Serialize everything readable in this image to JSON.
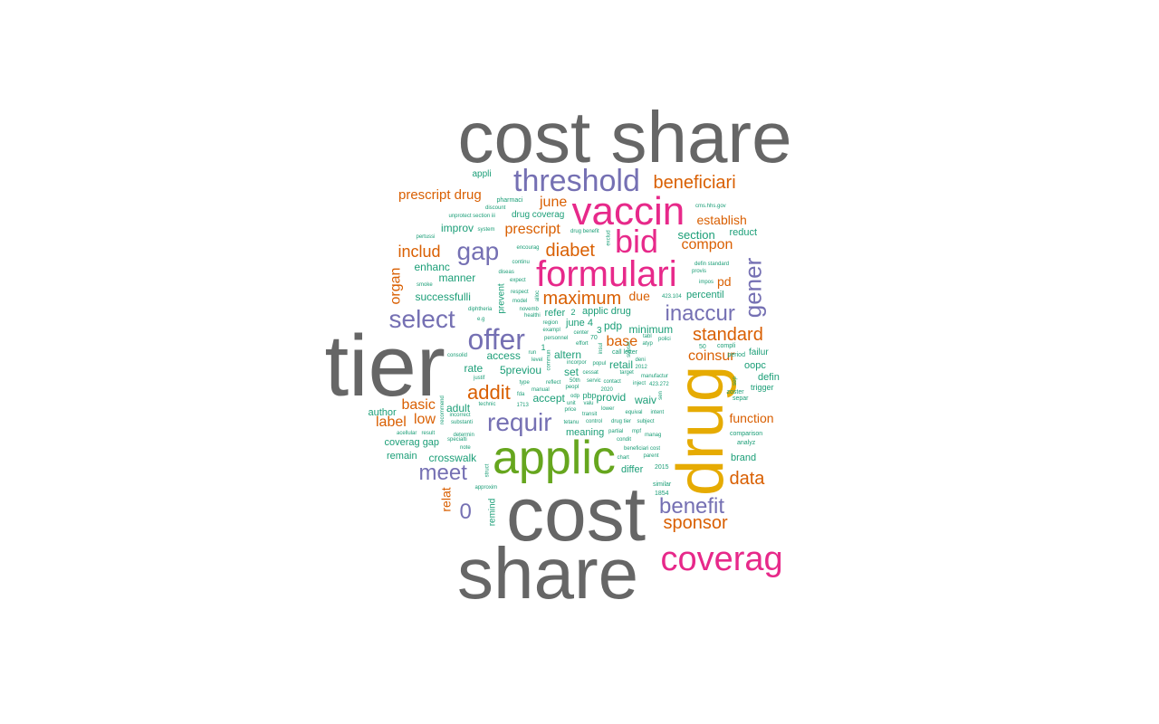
{
  "palette": {
    "grey": "#666666",
    "orange": "#d95f02",
    "purple": "#7570b3",
    "magenta": "#e7298a",
    "green": "#66a61e",
    "gold": "#e6ab02",
    "teal": "#1b9e77"
  },
  "words": [
    {
      "text": "cost share",
      "group": "grey"
    },
    {
      "text": "tier",
      "group": "grey"
    },
    {
      "text": "cost",
      "group": "grey"
    },
    {
      "text": "share",
      "group": "grey"
    },
    {
      "text": "drug",
      "group": "gold"
    },
    {
      "text": "applic",
      "group": "green"
    },
    {
      "text": "vaccin",
      "group": "magenta"
    },
    {
      "text": "formulari",
      "group": "magenta"
    },
    {
      "text": "coverag",
      "group": "magenta"
    },
    {
      "text": "bid",
      "group": "magenta"
    },
    {
      "text": "threshold",
      "group": "purple"
    },
    {
      "text": "offer",
      "group": "purple"
    },
    {
      "text": "gap",
      "group": "purple"
    },
    {
      "text": "select",
      "group": "purple"
    },
    {
      "text": "requir",
      "group": "purple"
    },
    {
      "text": "meet",
      "group": "purple"
    },
    {
      "text": "inaccur",
      "group": "purple"
    },
    {
      "text": "gener",
      "group": "purple"
    },
    {
      "text": "benefit",
      "group": "purple"
    },
    {
      "text": "0",
      "group": "purple"
    },
    {
      "text": "beneficiari",
      "group": "orange"
    },
    {
      "text": "prescript drug",
      "group": "orange"
    },
    {
      "text": "includ",
      "group": "orange"
    },
    {
      "text": "diabet",
      "group": "orange"
    },
    {
      "text": "maximum",
      "group": "orange"
    },
    {
      "text": "addit",
      "group": "orange"
    },
    {
      "text": "standard",
      "group": "orange"
    },
    {
      "text": "sponsor",
      "group": "orange"
    },
    {
      "text": "data",
      "group": "orange"
    },
    {
      "text": "compon",
      "group": "orange"
    },
    {
      "text": "prescript",
      "group": "orange"
    },
    {
      "text": "establish",
      "group": "orange"
    },
    {
      "text": "june",
      "group": "orange"
    },
    {
      "text": "coinsur",
      "group": "orange"
    },
    {
      "text": "base",
      "group": "orange"
    },
    {
      "text": "basic",
      "group": "orange"
    },
    {
      "text": "label",
      "group": "orange"
    },
    {
      "text": "low",
      "group": "orange"
    },
    {
      "text": "function",
      "group": "orange"
    },
    {
      "text": "organ",
      "group": "orange"
    },
    {
      "text": "due",
      "group": "orange"
    },
    {
      "text": "pd",
      "group": "orange"
    },
    {
      "text": "relat",
      "group": "orange"
    },
    {
      "text": "section",
      "group": "teal"
    },
    {
      "text": "enhanc",
      "group": "teal"
    },
    {
      "text": "manner",
      "group": "teal"
    },
    {
      "text": "successfulli",
      "group": "teal"
    },
    {
      "text": "improv",
      "group": "teal"
    },
    {
      "text": "reduct",
      "group": "teal"
    },
    {
      "text": "percentil",
      "group": "teal"
    },
    {
      "text": "access",
      "group": "teal"
    },
    {
      "text": "rate",
      "group": "teal"
    },
    {
      "text": "5previou",
      "group": "teal"
    },
    {
      "text": "set",
      "group": "teal"
    },
    {
      "text": "retail",
      "group": "teal"
    },
    {
      "text": "altern",
      "group": "teal"
    },
    {
      "text": "accept",
      "group": "teal"
    },
    {
      "text": "provid",
      "group": "teal"
    },
    {
      "text": "waiv",
      "group": "teal"
    },
    {
      "text": "adult",
      "group": "teal"
    },
    {
      "text": "author",
      "group": "teal"
    },
    {
      "text": "coverag gap",
      "group": "teal"
    },
    {
      "text": "remain",
      "group": "teal"
    },
    {
      "text": "crosswalk",
      "group": "teal"
    },
    {
      "text": "meaning",
      "group": "teal"
    },
    {
      "text": "differ",
      "group": "teal"
    },
    {
      "text": "brand",
      "group": "teal"
    },
    {
      "text": "defin",
      "group": "teal"
    },
    {
      "text": "oopc",
      "group": "teal"
    },
    {
      "text": "failur",
      "group": "teal"
    },
    {
      "text": "minimum",
      "group": "teal"
    },
    {
      "text": "pdp",
      "group": "teal"
    },
    {
      "text": "june 4",
      "group": "teal"
    },
    {
      "text": "refer",
      "group": "teal"
    },
    {
      "text": "applic drug",
      "group": "teal"
    },
    {
      "text": "drug coverag",
      "group": "teal"
    },
    {
      "text": "appli",
      "group": "teal"
    },
    {
      "text": "prevent",
      "group": "teal"
    },
    {
      "text": "remind",
      "group": "teal"
    },
    {
      "text": "1854",
      "group": "teal"
    },
    {
      "text": "similar",
      "group": "teal"
    },
    {
      "text": "2015",
      "group": "teal"
    },
    {
      "text": "trigger",
      "group": "teal"
    },
    {
      "text": "separ",
      "group": "teal"
    },
    {
      "text": "zoster",
      "group": "teal"
    },
    {
      "text": "comparison",
      "group": "teal"
    },
    {
      "text": "analyz",
      "group": "teal"
    },
    {
      "text": "compli",
      "group": "teal"
    },
    {
      "text": "period",
      "group": "teal"
    },
    {
      "text": "50",
      "group": "teal"
    },
    {
      "text": "423.104",
      "group": "teal"
    },
    {
      "text": "defin standard",
      "group": "teal"
    },
    {
      "text": "provis",
      "group": "teal"
    },
    {
      "text": "impos",
      "group": "teal"
    },
    {
      "text": "cms.hhs.gov",
      "group": "teal"
    },
    {
      "text": "pharmaci",
      "group": "teal"
    },
    {
      "text": "discount",
      "group": "teal"
    },
    {
      "text": "unprotect section iii",
      "group": "teal"
    },
    {
      "text": "system",
      "group": "teal"
    },
    {
      "text": "pertussi",
      "group": "teal"
    },
    {
      "text": "continu",
      "group": "teal"
    },
    {
      "text": "encourag",
      "group": "teal"
    },
    {
      "text": "diseas",
      "group": "teal"
    },
    {
      "text": "expect",
      "group": "teal"
    },
    {
      "text": "respect",
      "group": "teal"
    },
    {
      "text": "model",
      "group": "teal"
    },
    {
      "text": "novemb",
      "group": "teal"
    },
    {
      "text": "healthi",
      "group": "teal"
    },
    {
      "text": "smoke",
      "group": "teal"
    },
    {
      "text": "diphtheria",
      "group": "teal"
    },
    {
      "text": "e.g",
      "group": "teal"
    },
    {
      "text": "drug benefit",
      "group": "teal"
    },
    {
      "text": "region",
      "group": "teal"
    },
    {
      "text": "exampl",
      "group": "teal"
    },
    {
      "text": "personnel",
      "group": "teal"
    },
    {
      "text": "center",
      "group": "teal"
    },
    {
      "text": "effort",
      "group": "teal"
    },
    {
      "text": "consolid",
      "group": "teal"
    },
    {
      "text": "justif",
      "group": "teal"
    },
    {
      "text": "technic",
      "group": "teal"
    },
    {
      "text": "incorrect",
      "group": "teal"
    },
    {
      "text": "substanti",
      "group": "teal"
    },
    {
      "text": "acellular",
      "group": "teal"
    },
    {
      "text": "result",
      "group": "teal"
    },
    {
      "text": "determin",
      "group": "teal"
    },
    {
      "text": "specialti",
      "group": "teal"
    },
    {
      "text": "note",
      "group": "teal"
    },
    {
      "text": "approxim",
      "group": "teal"
    },
    {
      "text": "run",
      "group": "teal"
    },
    {
      "text": "level",
      "group": "teal"
    },
    {
      "text": "incorpor",
      "group": "teal"
    },
    {
      "text": "popul",
      "group": "teal"
    },
    {
      "text": "call letter",
      "group": "teal"
    },
    {
      "text": "target",
      "group": "teal"
    },
    {
      "text": "manufactur",
      "group": "teal"
    },
    {
      "text": "423.272",
      "group": "teal"
    },
    {
      "text": "inject",
      "group": "teal"
    },
    {
      "text": "type",
      "group": "teal"
    },
    {
      "text": "reflect",
      "group": "teal"
    },
    {
      "text": "manual",
      "group": "teal"
    },
    {
      "text": "peopl",
      "group": "teal"
    },
    {
      "text": "fda",
      "group": "teal"
    },
    {
      "text": "50th",
      "group": "teal"
    },
    {
      "text": "servic",
      "group": "teal"
    },
    {
      "text": "contact",
      "group": "teal"
    },
    {
      "text": "2020",
      "group": "teal"
    },
    {
      "text": "pbp",
      "group": "teal"
    },
    {
      "text": "odp",
      "group": "teal"
    },
    {
      "text": "unit",
      "group": "teal"
    },
    {
      "text": "valu",
      "group": "teal"
    },
    {
      "text": "1713",
      "group": "teal"
    },
    {
      "text": "price",
      "group": "teal"
    },
    {
      "text": "transit",
      "group": "teal"
    },
    {
      "text": "lower",
      "group": "teal"
    },
    {
      "text": "equival",
      "group": "teal"
    },
    {
      "text": "intent",
      "group": "teal"
    },
    {
      "text": "tetanu",
      "group": "teal"
    },
    {
      "text": "control",
      "group": "teal"
    },
    {
      "text": "drug tier",
      "group": "teal"
    },
    {
      "text": "subject",
      "group": "teal"
    },
    {
      "text": "partial",
      "group": "teal"
    },
    {
      "text": "mpf",
      "group": "teal"
    },
    {
      "text": "condit",
      "group": "teal"
    },
    {
      "text": "manag",
      "group": "teal"
    },
    {
      "text": "beneficiari cost",
      "group": "teal"
    },
    {
      "text": "parent",
      "group": "teal"
    },
    {
      "text": "chart",
      "group": "teal"
    },
    {
      "text": "cessat",
      "group": "teal"
    },
    {
      "text": "deni",
      "group": "teal"
    },
    {
      "text": "2012",
      "group": "teal"
    },
    {
      "text": "tabl",
      "group": "teal"
    },
    {
      "text": "atyp",
      "group": "teal"
    },
    {
      "text": "polici",
      "group": "teal"
    },
    {
      "text": "70",
      "group": "teal"
    },
    {
      "text": "2",
      "group": "teal"
    },
    {
      "text": "3",
      "group": "teal"
    },
    {
      "text": "1",
      "group": "teal"
    },
    {
      "text": "struct",
      "group": "teal"
    },
    {
      "text": "subset",
      "group": "teal"
    },
    {
      "text": "exclud",
      "group": "teal"
    },
    {
      "text": "alloc",
      "group": "teal"
    },
    {
      "text": "recommend",
      "group": "teal"
    },
    {
      "text": "insul",
      "group": "teal"
    },
    {
      "text": "commun",
      "group": "teal"
    },
    {
      "text": "sen",
      "group": "teal"
    },
    {
      "text": "sep",
      "group": "teal"
    }
  ]
}
